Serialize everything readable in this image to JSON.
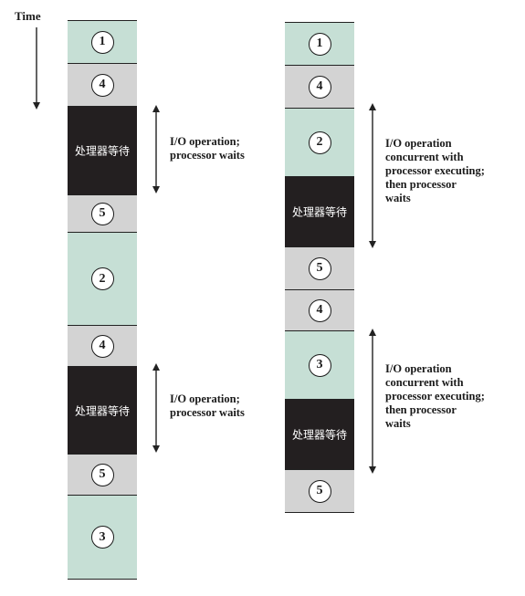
{
  "time_label": "Time",
  "colors": {
    "compute": "#c6dfd5",
    "interrupt": "#d3d3d3",
    "wait": "#231f20",
    "outline": "#222222"
  },
  "left_column": {
    "segments": [
      {
        "kind": "compute",
        "label": "1"
      },
      {
        "kind": "interrupt",
        "label": "4"
      },
      {
        "kind": "wait",
        "label": "处理器等待"
      },
      {
        "kind": "interrupt",
        "label": "5"
      },
      {
        "kind": "compute",
        "label": "2"
      },
      {
        "kind": "interrupt",
        "label": "4"
      },
      {
        "kind": "wait",
        "label": "处理器等待"
      },
      {
        "kind": "interrupt",
        "label": "5"
      },
      {
        "kind": "compute",
        "label": "3"
      }
    ],
    "annotations": [
      {
        "lines": [
          "I/O operation;",
          "processor waits"
        ]
      },
      {
        "lines": [
          "I/O operation;",
          "processor waits"
        ]
      }
    ]
  },
  "right_column": {
    "segments": [
      {
        "kind": "compute",
        "label": "1"
      },
      {
        "kind": "interrupt",
        "label": "4"
      },
      {
        "kind": "compute",
        "label": "2"
      },
      {
        "kind": "wait",
        "label": "处理器等待"
      },
      {
        "kind": "interrupt",
        "label": "5"
      },
      {
        "kind": "interrupt",
        "label": "4"
      },
      {
        "kind": "compute",
        "label": "3"
      },
      {
        "kind": "wait",
        "label": "处理器等待"
      },
      {
        "kind": "interrupt",
        "label": "5"
      }
    ],
    "annotations": [
      {
        "lines": [
          "I/O operation",
          "concurrent with",
          "processor executing;",
          "then processor",
          "waits"
        ]
      },
      {
        "lines": [
          "I/O operation",
          "concurrent with",
          "processor executing;",
          "then processor",
          "waits"
        ]
      }
    ]
  }
}
